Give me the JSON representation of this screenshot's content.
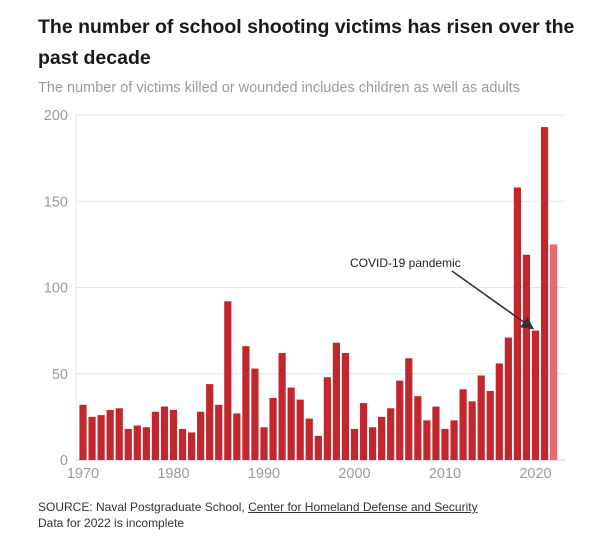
{
  "title": "The number of school shooting victims has risen over the past decade",
  "subtitle": "The number of victims killed or wounded includes children as well as adults",
  "source": {
    "prefix": "SOURCE: Naval Postgraduate School, ",
    "link": "Center for Homeland Defense and Security",
    "note": "Data for 2022 is incomplete"
  },
  "colors": {
    "bar": "#c1272d",
    "bar_incomplete": "#e86a70",
    "grid": "#e6e6e6",
    "axis": "#cfcfcf"
  },
  "chart_data": {
    "type": "bar",
    "title": "The number of school shooting victims has risen over the past decade",
    "xlabel": "",
    "ylabel": "",
    "ylim": [
      0,
      200
    ],
    "yticks": [
      0,
      50,
      100,
      150,
      200
    ],
    "xticks": [
      1970,
      1980,
      1990,
      2000,
      2010,
      2020
    ],
    "x": [
      1970,
      1971,
      1972,
      1973,
      1974,
      1975,
      1976,
      1977,
      1978,
      1979,
      1980,
      1981,
      1982,
      1983,
      1984,
      1985,
      1986,
      1987,
      1988,
      1989,
      1990,
      1991,
      1992,
      1993,
      1994,
      1995,
      1996,
      1997,
      1998,
      1999,
      2000,
      2001,
      2002,
      2003,
      2004,
      2005,
      2006,
      2007,
      2008,
      2009,
      2010,
      2011,
      2012,
      2013,
      2014,
      2015,
      2016,
      2017,
      2018,
      2019,
      2020,
      2021,
      2022
    ],
    "values": [
      32,
      25,
      26,
      29,
      30,
      18,
      20,
      19,
      28,
      31,
      29,
      18,
      16,
      28,
      44,
      32,
      92,
      27,
      66,
      53,
      19,
      36,
      62,
      42,
      35,
      24,
      14,
      48,
      68,
      62,
      18,
      33,
      19,
      25,
      30,
      46,
      59,
      37,
      23,
      31,
      18,
      23,
      41,
      34,
      49,
      40,
      56,
      71,
      158,
      119,
      75,
      193,
      125
    ],
    "incomplete_year": 2022,
    "annotation": {
      "text": "COVID-19 pandemic",
      "points_to": 2020
    }
  }
}
